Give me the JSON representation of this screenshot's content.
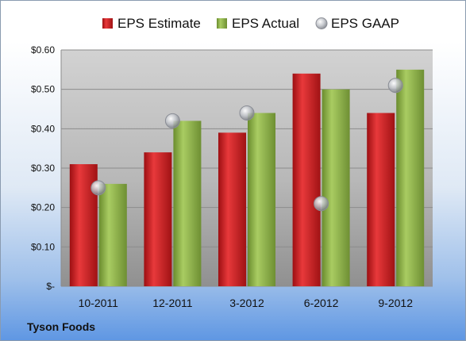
{
  "chart_data": {
    "type": "bar",
    "categories": [
      "10-2011",
      "12-2011",
      "3-2012",
      "6-2012",
      "9-2012"
    ],
    "series": [
      {
        "name": "EPS Estimate",
        "kind": "bar",
        "color": "#c8191c",
        "values": [
          0.31,
          0.34,
          0.39,
          0.54,
          0.44
        ]
      },
      {
        "name": "EPS Actual",
        "kind": "bar",
        "color": "#8db04a",
        "values": [
          0.26,
          0.42,
          0.44,
          0.5,
          0.55
        ]
      },
      {
        "name": "EPS GAAP",
        "kind": "scatter",
        "color": "#b8bcc4",
        "values": [
          0.25,
          0.42,
          0.44,
          0.21,
          0.51
        ]
      }
    ],
    "ylim": [
      0,
      0.6
    ],
    "yticks": [
      0,
      0.1,
      0.2,
      0.3,
      0.4,
      0.5,
      0.6
    ],
    "ytick_labels": [
      "$-",
      "$0.10",
      "$0.20",
      "$0.30",
      "$0.40",
      "$0.50",
      "$0.60"
    ],
    "grid": true,
    "legend_position": "top",
    "footer": "Tyson Foods"
  }
}
